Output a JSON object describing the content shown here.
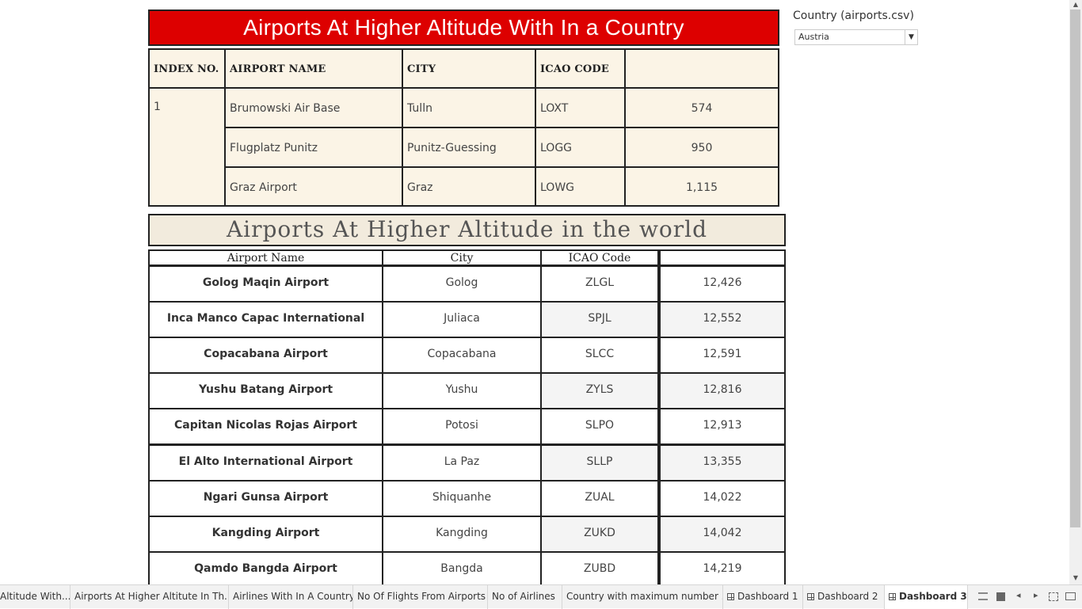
{
  "country_title": "Airports At Higher Altitude With In a Country",
  "country_table": {
    "headers": [
      "INDEX NO.",
      "AIRPORT NAME",
      "CITY",
      "ICAO CODE",
      ""
    ],
    "index": "1",
    "rows": [
      {
        "name": "Brumowski  Air Base",
        "city": "Tulln",
        "icao": "LOXT",
        "altitude": "574"
      },
      {
        "name": "Flugplatz Punitz",
        "city": "Punitz-Guessing",
        "icao": "LOGG",
        "altitude": "950"
      },
      {
        "name": "Graz Airport",
        "city": "Graz",
        "icao": "LOWG",
        "altitude": "1,115"
      }
    ]
  },
  "world_title": "Airports At Higher Altitude  in the world",
  "world_table": {
    "headers": [
      "Airport Name",
      "City",
      "ICAO Code",
      ""
    ],
    "rows": [
      {
        "name": "Golog Maqin Airport",
        "city": "Golog",
        "icao": "ZLGL",
        "altitude": "12,426"
      },
      {
        "name": "Inca Manco Capac International Airport",
        "city": "Juliaca",
        "icao": "SPJL",
        "altitude": "12,552"
      },
      {
        "name": "Copacabana Airport",
        "city": "Copacabana",
        "icao": "SLCC",
        "altitude": "12,591"
      },
      {
        "name": "Yushu Batang Airport",
        "city": "Yushu",
        "icao": "ZYLS",
        "altitude": "12,816"
      },
      {
        "name": "Capitan Nicolas Rojas Airport",
        "city": "Potosi",
        "icao": "SLPO",
        "altitude": "12,913"
      },
      {
        "name": "El Alto International Airport",
        "city": "La Paz",
        "icao": "SLLP",
        "altitude": "13,355"
      },
      {
        "name": "Ngari Gunsa Airport",
        "city": "Shiquanhe",
        "icao": "ZUAL",
        "altitude": "14,022"
      },
      {
        "name": "Kangding Airport",
        "city": "Kangding",
        "icao": "ZUKD",
        "altitude": "14,042"
      },
      {
        "name": "Qamdo Bangda Airport",
        "city": "Bangda",
        "icao": "ZUBD",
        "altitude": "14,219"
      }
    ]
  },
  "filter": {
    "label": "Country (airports.csv)",
    "value": "Austria"
  },
  "tabs": [
    {
      "label": "Altitude  With..."
    },
    {
      "label": "Airports At Higher Altitute In Th..."
    },
    {
      "label": "Airlines With In A Country"
    },
    {
      "label": "No Of Flights From Airports"
    },
    {
      "label": "No of Airlines"
    },
    {
      "label": "Country with maximum number ..."
    },
    {
      "label": "Dashboard 1"
    },
    {
      "label": "Dashboard 2"
    },
    {
      "label": "Dashboard 3"
    }
  ],
  "colors": {
    "title_red": "#dd0000",
    "table_cream": "#fbf4e6",
    "title2_bg": "#f2ebdd"
  }
}
